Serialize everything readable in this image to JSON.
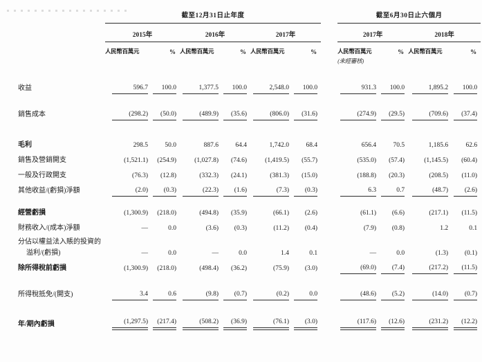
{
  "colors": {
    "background": "#fdfdfd",
    "text": "#1e1e1e",
    "rule_line": "#2c2c2c"
  },
  "table": {
    "unit_label": "人民幣百萬元",
    "pct_label": "%",
    "groups": [
      {
        "title": "截至12月31日止年度",
        "years": [
          {
            "label": "2015年"
          },
          {
            "label": "2016年"
          },
          {
            "label": "2017年"
          }
        ]
      },
      {
        "title": "截至6月30日止六個月",
        "years": [
          {
            "label": "2017年",
            "note": "(未經審核)"
          },
          {
            "label": "2018年"
          }
        ]
      }
    ],
    "rows": [
      {
        "label": "收益",
        "bold": false,
        "rule": "all",
        "values": [
          "596.7",
          "100.0",
          "1,377.5",
          "100.0",
          "2,548.0",
          "100.0",
          "931.3",
          "100.0",
          "1,895.2",
          "100.0"
        ]
      },
      {
        "label": "銷售成本",
        "bold": false,
        "rule": "all",
        "values": [
          "(298.2)",
          "(50.0)",
          "(489.9)",
          "(35.6)",
          "(806.0)",
          "(31.6)",
          "(274.9)",
          "(29.5)",
          "(709.6)",
          "(37.4)"
        ]
      },
      {
        "label": "毛利",
        "bold": true,
        "rule": "none",
        "values": [
          "298.5",
          "50.0",
          "887.6",
          "64.4",
          "1,742.0",
          "68.4",
          "656.4",
          "70.5",
          "1,185.6",
          "62.6"
        ]
      },
      {
        "label": "銷售及營銷開支",
        "bold": false,
        "rule": "none",
        "values": [
          "(1,521.1)",
          "(254.9)",
          "(1,027.8)",
          "(74.6)",
          "(1,419.5)",
          "(55.7)",
          "(535.0)",
          "(57.4)",
          "(1,145.5)",
          "(60.4)"
        ]
      },
      {
        "label": "一般及行政開支",
        "bold": false,
        "rule": "none",
        "values": [
          "(76.3)",
          "(12.8)",
          "(332.3)",
          "(24.1)",
          "(381.3)",
          "(15.0)",
          "(188.8)",
          "(20.3)",
          "(208.5)",
          "(11.0)"
        ]
      },
      {
        "label": "其他收益/(虧損)淨額",
        "bold": false,
        "rule": "all",
        "values": [
          "(2.0)",
          "(0.3)",
          "(22.3)",
          "(1.6)",
          "(7.3)",
          "(0.3)",
          "6.3",
          "0.7",
          "(48.7)",
          "(2.6)"
        ]
      },
      {
        "label": "經營虧損",
        "bold": true,
        "rule": "none",
        "values": [
          "(1,300.9)",
          "(218.0)",
          "(494.8)",
          "(35.9)",
          "(66.1)",
          "(2.6)",
          "(61.1)",
          "(6.6)",
          "(217.1)",
          "(11.5)"
        ]
      },
      {
        "label": "財務收入/(成本)淨額",
        "bold": false,
        "rule": "none",
        "values": [
          "—",
          "0.0",
          "(3.6)",
          "(0.3)",
          "(11.2)",
          "(0.4)",
          "(7.9)",
          "(0.8)",
          "1.2",
          "0.1"
        ]
      },
      {
        "label": "分佔以權益法入賬的投資的",
        "label2": "溢利/(虧損)",
        "bold": false,
        "rule": "none",
        "values": [
          "—",
          "0.0",
          "—",
          "0.0",
          "1.4",
          "0.1",
          "—",
          "0.0",
          "(1.3)",
          "(0.1)"
        ]
      },
      {
        "label": "除所得稅前虧損",
        "bold": true,
        "rule": "interim",
        "values": [
          "(1,300.9)",
          "(218.0)",
          "(498.4)",
          "(36.2)",
          "(75.9)",
          "(3.0)",
          "(69.0)",
          "(7.4)",
          "(217.2)",
          "(11.5)"
        ]
      },
      {
        "label": "所得稅抵免/(開支)",
        "bold": false,
        "rule": "all",
        "values": [
          "3.4",
          "0.6",
          "(9.8)",
          "(0.7)",
          "(0.2)",
          "0.0",
          "(48.6)",
          "(5.2)",
          "(14.0)",
          "(0.7)"
        ]
      },
      {
        "label": "年/期內虧損",
        "bold": true,
        "rule": "double",
        "values": [
          "(1,297.5)",
          "(217.4)",
          "(508.2)",
          "(36.9)",
          "(76.1)",
          "(3.0)",
          "(117.6)",
          "(12.6)",
          "(231.2)",
          "(12.2)"
        ]
      }
    ]
  }
}
